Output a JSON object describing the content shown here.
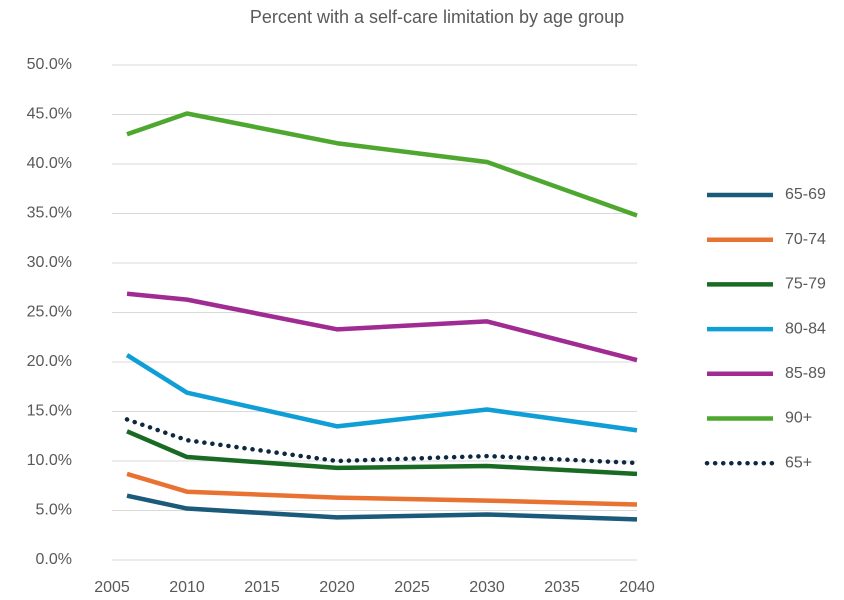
{
  "chart_data": {
    "type": "line",
    "title": "Percent with a self-care limitation by age group",
    "x": [
      2006,
      2010,
      2020,
      2030,
      2040
    ],
    "xlim": [
      2005,
      2040
    ],
    "xticks": [
      2005,
      2010,
      2015,
      2020,
      2025,
      2030,
      2035,
      2040
    ],
    "ylim": [
      0,
      50
    ],
    "yticks": [
      {
        "value": 0,
        "label": "0.0%"
      },
      {
        "value": 5,
        "label": "5.0%"
      },
      {
        "value": 10,
        "label": "10.0%"
      },
      {
        "value": 15,
        "label": "15.0%"
      },
      {
        "value": 20,
        "label": "20.0%"
      },
      {
        "value": 25,
        "label": "25.0%"
      },
      {
        "value": 30,
        "label": "30.0%"
      },
      {
        "value": 35,
        "label": "35.0%"
      },
      {
        "value": 40,
        "label": "40.0%"
      },
      {
        "value": 45,
        "label": "45.0%"
      },
      {
        "value": 50,
        "label": "50.0%"
      }
    ],
    "grid": true,
    "legend": "right",
    "series": [
      {
        "name": "65-69",
        "color": "#1b5a7a",
        "values": [
          6.5,
          5.2,
          4.3,
          4.6,
          4.1
        ]
      },
      {
        "name": "70-74",
        "color": "#e97132",
        "values": [
          8.7,
          6.9,
          6.3,
          6.0,
          5.6
        ]
      },
      {
        "name": "75-79",
        "color": "#196b24",
        "values": [
          13.0,
          10.4,
          9.3,
          9.5,
          8.7
        ]
      },
      {
        "name": "80-84",
        "color": "#0f9ed5",
        "values": [
          20.7,
          16.9,
          13.5,
          15.2,
          13.1
        ]
      },
      {
        "name": "85-89",
        "color": "#a02b93",
        "values": [
          26.9,
          26.3,
          23.3,
          24.1,
          20.2
        ]
      },
      {
        "name": "90+",
        "color": "#4ea72e",
        "values": [
          43.0,
          45.1,
          42.1,
          40.2,
          34.8
        ]
      },
      {
        "name": "65+",
        "color": "#0e2841",
        "dash": "dotted",
        "values": [
          14.2,
          12.1,
          10.0,
          10.5,
          9.8
        ]
      }
    ]
  }
}
